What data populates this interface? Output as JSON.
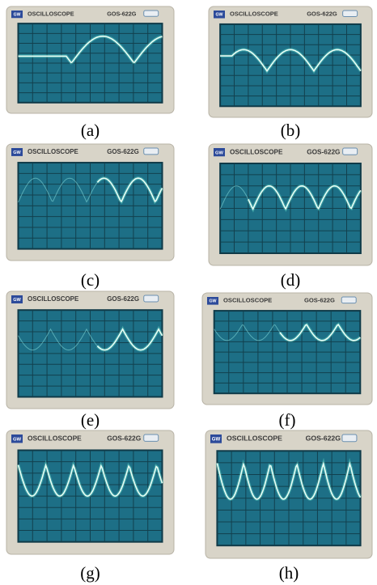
{
  "panels": [
    {
      "label": "(a)",
      "logo": "GW",
      "title": "OSCILLOSCOPE",
      "model": "GOS-622G"
    },
    {
      "label": "(b)",
      "logo": "GW",
      "title": "OSCILLOSCOPE",
      "model": "GOS-622G"
    },
    {
      "label": "(c)",
      "logo": "GW",
      "title": "OSCILLOSCOPE",
      "model": "GOS-622G"
    },
    {
      "label": "(d)",
      "logo": "GW",
      "title": "OSCILLOSCOPE",
      "model": "GOS-622G"
    },
    {
      "label": "(e)",
      "logo": "GW",
      "title": "OSCILLOSCOPE",
      "model": "GOS-622G"
    },
    {
      "label": "(f)",
      "logo": "GW",
      "title": "OSCILLOSCOPE",
      "model": "GOS-622G"
    },
    {
      "label": "(g)",
      "logo": "GW",
      "title": "OSCILLOSCOPE",
      "model": "GOS-622G"
    },
    {
      "label": "(h)",
      "logo": "GW",
      "title": "OSCILLOSCOPE",
      "model": "GOS-622G"
    }
  ]
}
